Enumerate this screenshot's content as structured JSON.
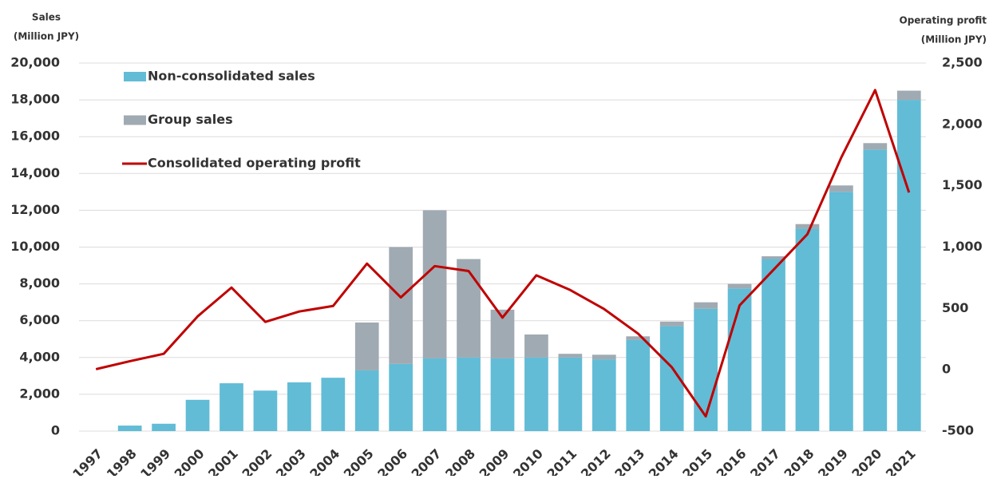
{
  "chart_data": {
    "type": "bar",
    "ylabel": [
      "Sales",
      "(Million JPY)"
    ],
    "y2label": [
      "Operating profit",
      "(Million JPY)"
    ],
    "categories": [
      "1997",
      "1998",
      "1999",
      "2000",
      "2001",
      "2002",
      "2003",
      "2004",
      "2005",
      "2006",
      "2007",
      "2008",
      "2009",
      "2010",
      "2011",
      "2012",
      "2013",
      "2014",
      "2015",
      "2016",
      "2017",
      "2018",
      "2019",
      "2020",
      "2021"
    ],
    "series": [
      {
        "name": "Non-consolidated sales",
        "type": "bar",
        "color": "#62bcd6",
        "values": [
          0,
          300,
          400,
          1700,
          2600,
          2200,
          2650,
          2900,
          3300,
          3650,
          3950,
          4000,
          3950,
          4000,
          4000,
          3900,
          4950,
          5700,
          6650,
          7750,
          9350,
          11000,
          13000,
          15300,
          18000
        ]
      },
      {
        "name": "Group sales",
        "type": "bar",
        "color": "#a0aab2",
        "values": [
          0,
          0,
          0,
          0,
          0,
          0,
          0,
          0,
          2600,
          6350,
          8050,
          5350,
          2650,
          1250,
          200,
          250,
          200,
          250,
          350,
          250,
          150,
          250,
          350,
          350,
          500
        ]
      },
      {
        "name": "Consolidated operating profit",
        "type": "line",
        "axis": "y2",
        "color": "#c00000",
        "values": [
          5,
          70,
          130,
          435,
          670,
          390,
          475,
          520,
          865,
          590,
          845,
          805,
          425,
          770,
          650,
          495,
          295,
          20,
          -380,
          525,
          815,
          1105,
          1730,
          2280,
          1445
        ]
      }
    ],
    "stacked": true,
    "ylim": [
      0,
      20000
    ],
    "yticks": [
      0,
      {
        "value": 2000,
        "label": "2,000"
      },
      {
        "value": 4000,
        "label": "4,000"
      },
      {
        "value": 6000,
        "label": "6,000"
      },
      {
        "value": 8000,
        "label": "8,000"
      },
      {
        "value": 10000,
        "label": "10,000"
      },
      {
        "value": 12000,
        "label": "12,000"
      },
      {
        "value": 14000,
        "label": "14,000"
      },
      {
        "value": 16000,
        "label": "16,000"
      },
      {
        "value": 18000,
        "label": "18,000"
      },
      {
        "value": 20000,
        "label": "20,000"
      }
    ],
    "y2lim": [
      -500,
      2500
    ],
    "y2ticks": [
      -500,
      0,
      500,
      {
        "value": 1000,
        "label": "1,000"
      },
      {
        "value": 1500,
        "label": "1,500"
      },
      {
        "value": 2000,
        "label": "2,000"
      },
      {
        "value": 2500,
        "label": "2,500"
      }
    ],
    "y2_negative_color": "#ff0000",
    "grid": true,
    "legend": "upper left"
  }
}
